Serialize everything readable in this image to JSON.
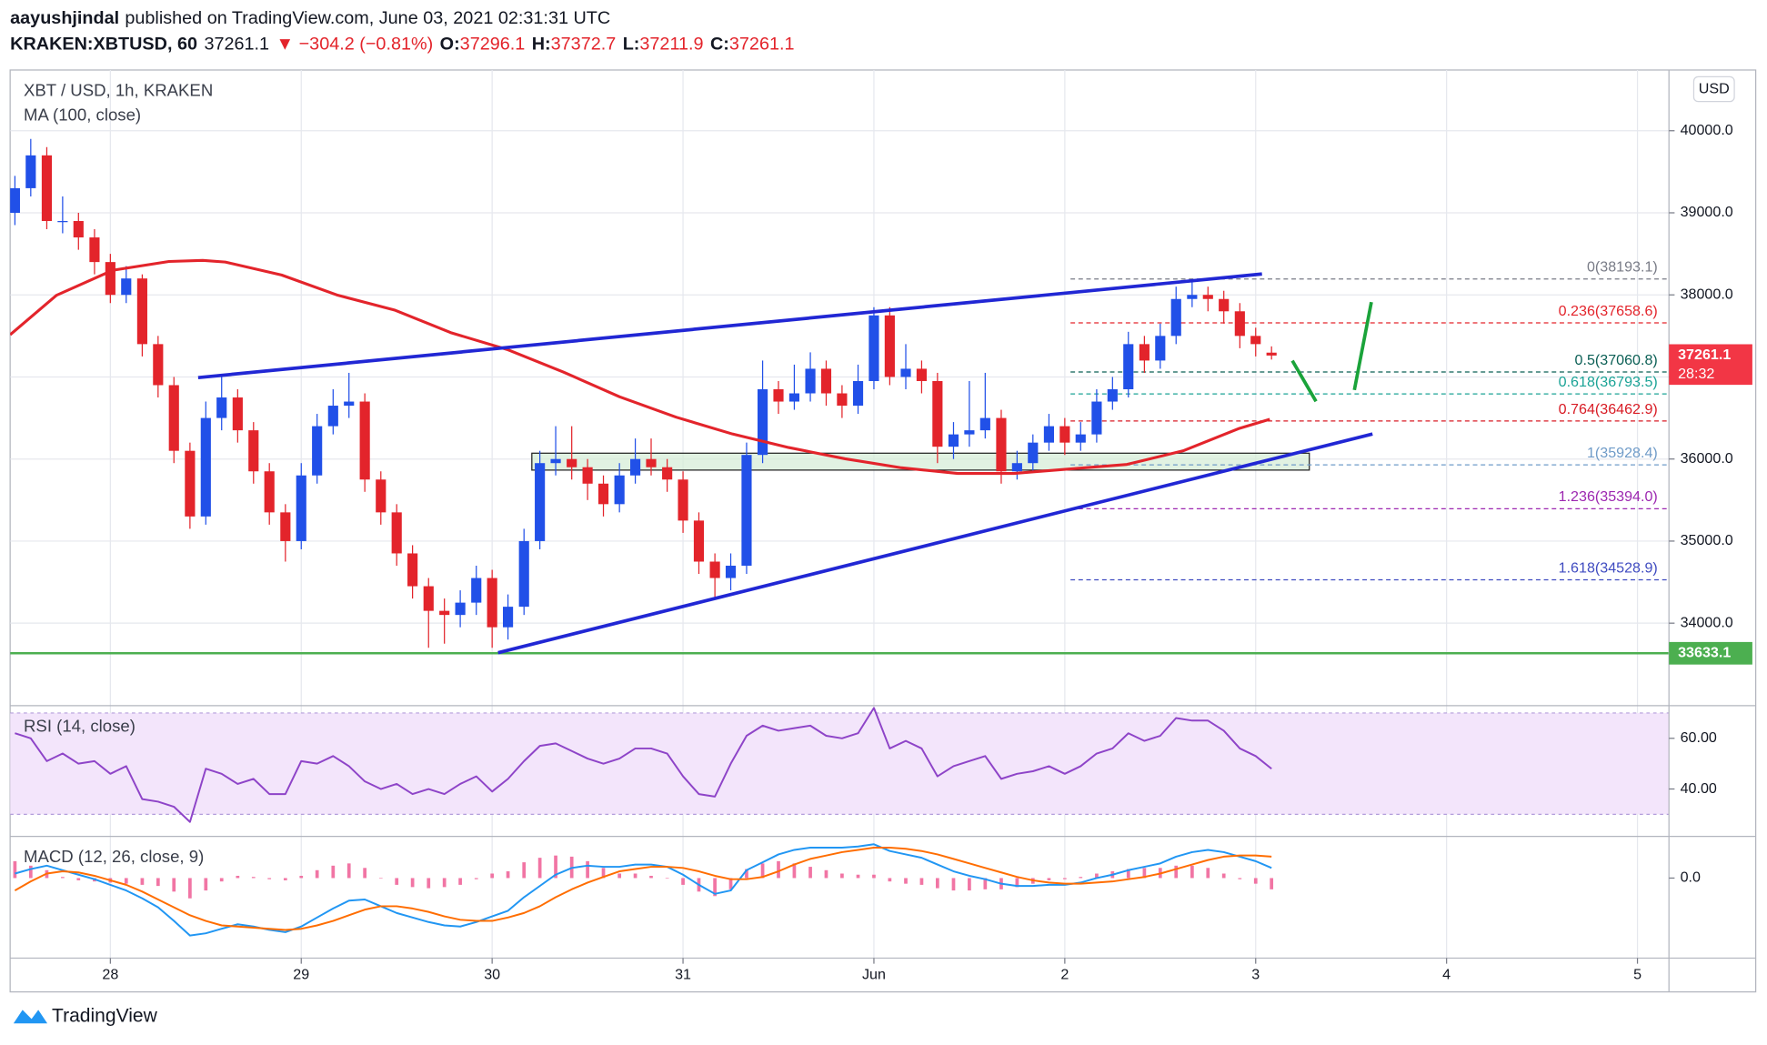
{
  "header": {
    "author": "aayushjindal",
    "published": "published on TradingView.com, June 03, 2021 02:31:31 UTC",
    "symbol": "KRAKEN:XBTUSD, 60",
    "last": "37261.1",
    "change": "▼ −304.2 (−0.81%)",
    "ohlc": [
      {
        "key": "O:",
        "value": "37296.1"
      },
      {
        "key": "H:",
        "value": "37372.7"
      },
      {
        "key": "L:",
        "value": "37211.9"
      },
      {
        "key": "C:",
        "value": "37261.1"
      }
    ]
  },
  "footer": {
    "brand": "TradingView"
  },
  "chart_data": [
    {
      "type": "candlestick",
      "title": "XBT / USD, 1h, KRAKEN",
      "currency": "USD",
      "up_color": "#2150e8",
      "down_color": "#e3242b",
      "grid": true,
      "xlim": [
        -0.525,
        8.165
      ],
      "xticks": [
        {
          "value": 0,
          "label": "28"
        },
        {
          "value": 1,
          "label": "29"
        },
        {
          "value": 2,
          "label": "30"
        },
        {
          "value": 3,
          "label": "31"
        },
        {
          "value": 4,
          "label": "Jun"
        },
        {
          "value": 5,
          "label": "2"
        },
        {
          "value": 6,
          "label": "3"
        },
        {
          "value": 7,
          "label": "4"
        },
        {
          "value": 8,
          "label": "5"
        }
      ],
      "ylim": [
        32995,
        40740
      ],
      "yticks": [
        {
          "value": 34000,
          "label": "34000.0"
        },
        {
          "value": 35000,
          "label": "35000.0"
        },
        {
          "value": 36000,
          "label": "36000.0"
        },
        {
          "value": 37000,
          "label": "37000.0"
        },
        {
          "value": 38000,
          "label": "38000.0"
        },
        {
          "value": 39000,
          "label": "39000.0"
        },
        {
          "value": 40000,
          "label": "40000.0"
        }
      ],
      "x": [
        -0.5,
        -0.417,
        -0.333,
        -0.25,
        -0.167,
        -0.083,
        0,
        0.083,
        0.167,
        0.25,
        0.333,
        0.417,
        0.5,
        0.583,
        0.667,
        0.75,
        0.833,
        0.917,
        1,
        1.083,
        1.167,
        1.25,
        1.333,
        1.417,
        1.5,
        1.583,
        1.667,
        1.75,
        1.833,
        1.917,
        2,
        2.083,
        2.167,
        2.25,
        2.333,
        2.417,
        2.5,
        2.583,
        2.667,
        2.75,
        2.833,
        2.917,
        3,
        3.083,
        3.167,
        3.25,
        3.333,
        3.417,
        3.5,
        3.583,
        3.667,
        3.75,
        3.833,
        3.917,
        4,
        4.083,
        4.167,
        4.25,
        4.333,
        4.417,
        4.5,
        4.583,
        4.667,
        4.75,
        4.833,
        4.917,
        5,
        5.083,
        5.167,
        5.25,
        5.333,
        5.417,
        5.5,
        5.583,
        5.667,
        5.75,
        5.833,
        5.917,
        6,
        6.083
      ],
      "candles": [
        [
          39000,
          39450,
          38850,
          39300
        ],
        [
          39300,
          39900,
          39200,
          39700
        ],
        [
          39700,
          39800,
          38800,
          38900
        ],
        [
          38900,
          39200,
          38750,
          38900
        ],
        [
          38900,
          39000,
          38550,
          38700
        ],
        [
          38700,
          38800,
          38250,
          38400
        ],
        [
          38400,
          38500,
          37900,
          38000
        ],
        [
          38000,
          38350,
          37900,
          38200
        ],
        [
          38200,
          38250,
          37250,
          37400
        ],
        [
          37400,
          37500,
          36750,
          36900
        ],
        [
          36900,
          37000,
          35950,
          36100
        ],
        [
          36100,
          36200,
          35150,
          35300
        ],
        [
          35300,
          36700,
          35200,
          36500
        ],
        [
          36500,
          37000,
          36350,
          36750
        ],
        [
          36750,
          36850,
          36200,
          36350
        ],
        [
          36350,
          36450,
          35700,
          35850
        ],
        [
          35850,
          35950,
          35200,
          35350
        ],
        [
          35350,
          35450,
          34750,
          35000
        ],
        [
          35000,
          35950,
          34900,
          35800
        ],
        [
          35800,
          36550,
          35700,
          36400
        ],
        [
          36400,
          36850,
          36300,
          36650
        ],
        [
          36650,
          37050,
          36500,
          36700
        ],
        [
          36700,
          36800,
          35600,
          35750
        ],
        [
          35750,
          35850,
          35200,
          35350
        ],
        [
          35350,
          35450,
          34700,
          34850
        ],
        [
          34850,
          34950,
          34300,
          34450
        ],
        [
          34450,
          34550,
          33700,
          34150
        ],
        [
          34150,
          34300,
          33750,
          34100
        ],
        [
          34100,
          34400,
          33950,
          34250
        ],
        [
          34250,
          34700,
          34100,
          34550
        ],
        [
          34550,
          34650,
          33700,
          33950
        ],
        [
          33950,
          34350,
          33800,
          34200
        ],
        [
          34200,
          35150,
          34100,
          35000
        ],
        [
          35000,
          36100,
          34900,
          35950
        ],
        [
          35950,
          36400,
          35800,
          36000
        ],
        [
          36000,
          36400,
          35750,
          35900
        ],
        [
          35900,
          36000,
          35500,
          35700
        ],
        [
          35700,
          35800,
          35300,
          35450
        ],
        [
          35450,
          35950,
          35350,
          35800
        ],
        [
          35800,
          36250,
          35700,
          36000
        ],
        [
          36000,
          36250,
          35800,
          35900
        ],
        [
          35900,
          36000,
          35600,
          35750
        ],
        [
          35750,
          35850,
          35100,
          35250
        ],
        [
          35250,
          35350,
          34600,
          34750
        ],
        [
          34750,
          34850,
          34300,
          34550
        ],
        [
          34550,
          34850,
          34400,
          34700
        ],
        [
          34700,
          36200,
          34600,
          36050
        ],
        [
          36050,
          37200,
          35950,
          36850
        ],
        [
          36850,
          36950,
          36550,
          36700
        ],
        [
          36700,
          37150,
          36600,
          36800
        ],
        [
          36800,
          37300,
          36700,
          37100
        ],
        [
          37100,
          37200,
          36650,
          36800
        ],
        [
          36800,
          36900,
          36500,
          36650
        ],
        [
          36650,
          37150,
          36550,
          36950
        ],
        [
          36950,
          37850,
          36850,
          37750
        ],
        [
          37750,
          37850,
          36900,
          37000
        ],
        [
          37000,
          37400,
          36850,
          37100
        ],
        [
          37100,
          37200,
          36800,
          36950
        ],
        [
          36950,
          37050,
          35950,
          36150
        ],
        [
          36150,
          36450,
          36000,
          36300
        ],
        [
          36300,
          36950,
          36150,
          36350
        ],
        [
          36350,
          37050,
          36250,
          36500
        ],
        [
          36500,
          36600,
          35700,
          35850
        ],
        [
          35850,
          36100,
          35750,
          35950
        ],
        [
          35950,
          36300,
          35850,
          36200
        ],
        [
          36200,
          36550,
          36100,
          36400
        ],
        [
          36400,
          36500,
          36050,
          36200
        ],
        [
          36200,
          36450,
          36100,
          36300
        ],
        [
          36300,
          36850,
          36200,
          36700
        ],
        [
          36700,
          37000,
          36600,
          36850
        ],
        [
          36850,
          37550,
          36750,
          37400
        ],
        [
          37400,
          37500,
          37050,
          37200
        ],
        [
          37200,
          37650,
          37100,
          37500
        ],
        [
          37500,
          38100,
          37400,
          37950
        ],
        [
          37950,
          38193.1,
          37850,
          38000
        ],
        [
          38000,
          38100,
          37800,
          37950
        ],
        [
          37950,
          38050,
          37650,
          37800
        ],
        [
          37800,
          37900,
          37350,
          37500
        ],
        [
          37500,
          37600,
          37250,
          37400
        ],
        [
          37296.1,
          37372.7,
          37211.9,
          37261.1
        ]
      ],
      "ma": {
        "name": "MA (100, close)",
        "color": "#e3242b",
        "x": [
          -0.525,
          -0.283,
          0.012,
          0.307,
          0.484,
          0.602,
          0.897,
          1.192,
          1.488,
          1.783,
          2.078,
          2.373,
          2.668,
          2.964,
          3.259,
          3.554,
          3.849,
          4.144,
          4.439,
          4.734,
          5.03,
          5.325,
          5.62,
          5.915,
          6.074
        ],
        "values": [
          37514,
          37994,
          38300,
          38407,
          38420,
          38400,
          38242,
          37995,
          37816,
          37540,
          37335,
          37060,
          36758,
          36510,
          36305,
          36140,
          36003,
          35893,
          35824,
          35824,
          35880,
          35934,
          36100,
          36374,
          36484
        ]
      },
      "zones": [
        {
          "color": "#d4ecd5",
          "x": [
            2.208,
            6.281
          ],
          "values": [
            35865,
            36071
          ]
        }
      ],
      "lines": [
        {
          "color": "#2127d4",
          "x": [
            0.46,
            6.033
          ],
          "values": [
            36992,
            38255
          ]
        },
        {
          "color": "#2127d4",
          "x": [
            2.031,
            6.612
          ],
          "values": [
            33640,
            36305
          ]
        },
        {
          "color": "#1aa33a",
          "x": [
            6.192,
            6.316
          ],
          "values": [
            37198,
            36703
          ]
        },
        {
          "color": "#1aa33a",
          "x": [
            6.517,
            6.606
          ],
          "values": [
            36841,
            37912
          ]
        }
      ],
      "fib_start": 5.03,
      "fib": [
        {
          "label": "0(38193.1)",
          "value": 38193.1,
          "color": "#787b86"
        },
        {
          "label": "0.236(37658.6)",
          "value": 37658.6,
          "color": "#e3242b"
        },
        {
          "label": "0.5(37060.8)",
          "value": 37060.8,
          "color": "#0b5f55"
        },
        {
          "label": "0.618(36793.5)",
          "value": 36793.5,
          "color": "#1ba396"
        },
        {
          "label": "0.764(36462.9)",
          "value": 36462.9,
          "color": "#d81b24"
        },
        {
          "label": "1(35928.4)",
          "value": 35928.4,
          "color": "#6f9bc8"
        },
        {
          "label": "1.236(35394.0)",
          "value": 35394.0,
          "color": "#9c27b0"
        },
        {
          "label": "1.618(34528.9)",
          "value": 34528.9,
          "color": "#3f4bc0"
        }
      ],
      "hlines": [
        {
          "value": 33633.1,
          "color": "#4caf50"
        }
      ],
      "last": {
        "value": 37261.1,
        "countdown": "28:32",
        "color": "#f23645"
      }
    },
    {
      "type": "line",
      "title": "RSI (14, close)",
      "ylim": [
        21.3,
        72.9
      ],
      "yticks": [
        {
          "value": 40,
          "label": "40.00"
        },
        {
          "value": 60,
          "label": "60.00"
        }
      ],
      "band": [
        30,
        70
      ],
      "band_color": "#f3e5fb",
      "series": [
        {
          "color": "#8e44c8",
          "values": [
            62,
            60,
            51,
            54,
            50,
            51,
            46,
            49,
            36,
            35,
            33,
            27,
            48,
            46,
            42,
            44,
            38,
            38,
            51,
            50,
            53,
            49,
            43,
            40,
            42,
            38,
            40,
            38,
            42,
            45,
            39,
            44,
            51,
            57,
            58,
            55,
            52,
            50,
            52,
            56,
            56,
            54,
            45,
            38,
            37,
            50,
            61,
            65,
            63,
            64,
            65,
            61,
            60,
            62,
            72,
            56,
            59,
            56,
            45,
            49,
            51,
            53,
            44,
            46,
            47,
            49,
            46,
            49,
            54,
            56,
            62,
            59,
            61,
            68,
            67,
            67,
            63,
            56,
            53,
            48
          ]
        }
      ]
    },
    {
      "type": "line",
      "title": "MACD (12, 26, close, 9)",
      "ylim": [
        -710,
        370
      ],
      "yticks": [
        {
          "value": 0,
          "label": "0.0"
        }
      ],
      "series": [
        {
          "style": "bar",
          "color": "#ee5d94",
          "values": [
            150,
            110,
            70,
            10,
            -20,
            -30,
            -40,
            -50,
            -60,
            -70,
            -120,
            -180,
            -110,
            -30,
            20,
            10,
            -10,
            -20,
            20,
            70,
            110,
            130,
            90,
            0,
            -60,
            -80,
            -90,
            -80,
            -60,
            -10,
            40,
            60,
            140,
            180,
            200,
            190,
            150,
            90,
            40,
            40,
            20,
            0,
            -60,
            -120,
            -160,
            -100,
            80,
            130,
            150,
            130,
            100,
            70,
            40,
            30,
            30,
            -30,
            -50,
            -60,
            -90,
            -110,
            -110,
            -100,
            -100,
            -80,
            -50,
            -20,
            -10,
            10,
            40,
            60,
            80,
            90,
            90,
            110,
            110,
            90,
            40,
            -10,
            -50,
            -100
          ]
        },
        {
          "color": "#2196f3",
          "values": [
            40,
            80,
            110,
            70,
            30,
            -10,
            -60,
            -110,
            -180,
            -260,
            -380,
            -510,
            -490,
            -450,
            -410,
            -430,
            -460,
            -480,
            -430,
            -350,
            -270,
            -200,
            -190,
            -250,
            -310,
            -350,
            -390,
            -420,
            -430,
            -390,
            -340,
            -290,
            -170,
            -70,
            30,
            90,
            110,
            100,
            100,
            120,
            120,
            100,
            30,
            -60,
            -140,
            -110,
            70,
            140,
            210,
            250,
            270,
            270,
            270,
            280,
            300,
            240,
            210,
            180,
            120,
            60,
            20,
            -10,
            -50,
            -70,
            -70,
            -60,
            -60,
            -40,
            0,
            30,
            70,
            100,
            130,
            190,
            230,
            250,
            230,
            190,
            150,
            90
          ]
        },
        {
          "color": "#ff6d00",
          "values": [
            -110,
            -30,
            40,
            60,
            50,
            20,
            -20,
            -60,
            -120,
            -190,
            -260,
            -330,
            -380,
            -420,
            -430,
            -440,
            -450,
            -460,
            -450,
            -420,
            -380,
            -330,
            -280,
            -250,
            -250,
            -270,
            -300,
            -340,
            -370,
            -380,
            -380,
            -350,
            -310,
            -250,
            -170,
            -100,
            -40,
            10,
            60,
            80,
            100,
            100,
            90,
            60,
            20,
            -10,
            -10,
            10,
            60,
            120,
            170,
            200,
            230,
            250,
            270,
            270,
            260,
            240,
            210,
            170,
            130,
            90,
            50,
            10,
            -20,
            -40,
            -50,
            -50,
            -40,
            -30,
            -10,
            10,
            40,
            80,
            120,
            160,
            190,
            200,
            200,
            190
          ]
        }
      ]
    }
  ]
}
